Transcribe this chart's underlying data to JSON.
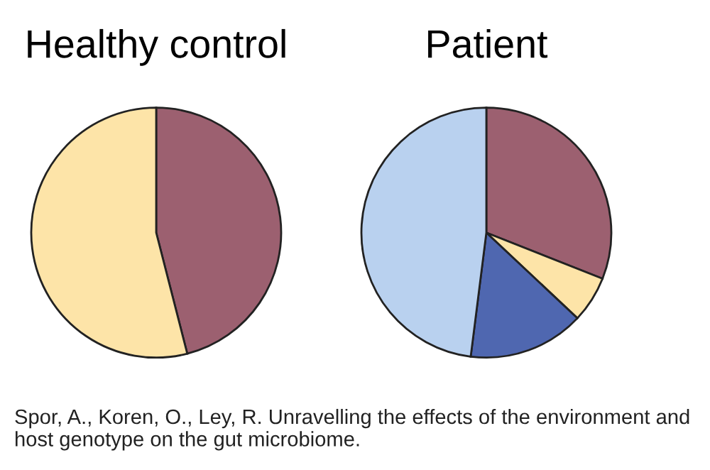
{
  "chart_data": [
    {
      "type": "pie",
      "title": "Healthy control",
      "categories": [
        null,
        null
      ],
      "values": [
        46,
        54
      ],
      "colors": [
        "#9c6070",
        "#fde4a8"
      ],
      "annotations": [
        "Spor, A., Koren, O., Ley, R. Unravelling the effects of the environment and host genotype on the gut microbiome."
      ]
    },
    {
      "type": "pie",
      "title": "Patient",
      "categories": [
        null,
        null,
        null,
        null
      ],
      "values": [
        31,
        6,
        15,
        48
      ],
      "colors": [
        "#9c6070",
        "#fde4a8",
        "#4f67b0",
        "#b9d1ef"
      ]
    }
  ]
}
